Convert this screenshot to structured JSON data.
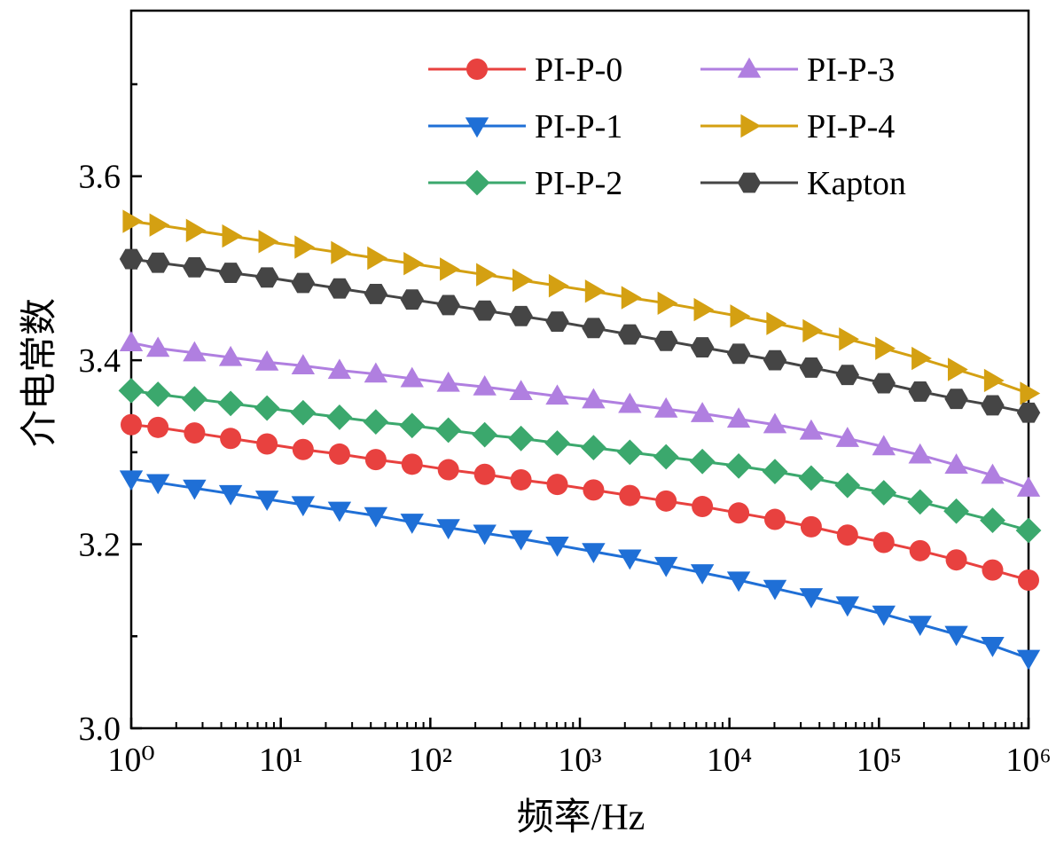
{
  "chart_data": {
    "type": "line",
    "x_label": "频率/Hz",
    "y_label": "介电常数",
    "x_scale": "log",
    "xlim": [
      1,
      1000000
    ],
    "ylim": [
      3.0,
      3.78
    ],
    "xticks": [
      {
        "value": 1,
        "label": "10⁰"
      },
      {
        "value": 10,
        "label": "10¹"
      },
      {
        "value": 100,
        "label": "10²"
      },
      {
        "value": 1000,
        "label": "10³"
      },
      {
        "value": 10000,
        "label": "10⁴"
      },
      {
        "value": 100000,
        "label": "10⁵"
      },
      {
        "value": 1000000,
        "label": "10⁶"
      }
    ],
    "yticks": [
      {
        "value": 3.0,
        "label": "3.0"
      },
      3.2,
      3.4,
      3.6
    ],
    "yminorticks": [
      3.1,
      3.3,
      3.5,
      3.7
    ],
    "legend": "top-right",
    "x": [
      1,
      1.51,
      2.65,
      4.62,
      8.09,
      14.1,
      24.7,
      43.2,
      75.5,
      132,
      231,
      404,
      706,
      1234,
      2158,
      3770,
      6590,
      11530,
      20150,
      35230,
      61570,
      107700,
      188300,
      329000,
      575000,
      1000000
    ],
    "series": [
      {
        "name": "PI-P-0",
        "color": "#e8413f",
        "marker": "circle",
        "values": [
          3.33,
          3.327,
          3.321,
          3.315,
          3.309,
          3.303,
          3.298,
          3.292,
          3.287,
          3.281,
          3.276,
          3.27,
          3.265,
          3.259,
          3.253,
          3.247,
          3.241,
          3.234,
          3.227,
          3.219,
          3.21,
          3.202,
          3.193,
          3.183,
          3.172,
          3.161
        ]
      },
      {
        "name": "PI-P-1",
        "color": "#1f6fd6",
        "marker": "triangle-down",
        "values": [
          3.271,
          3.267,
          3.261,
          3.255,
          3.249,
          3.243,
          3.237,
          3.231,
          3.224,
          3.218,
          3.212,
          3.206,
          3.199,
          3.192,
          3.185,
          3.177,
          3.169,
          3.161,
          3.152,
          3.143,
          3.134,
          3.124,
          3.113,
          3.102,
          3.09,
          3.076
        ]
      },
      {
        "name": "PI-P-2",
        "color": "#3ba86d",
        "marker": "diamond",
        "values": [
          3.367,
          3.363,
          3.358,
          3.353,
          3.348,
          3.343,
          3.338,
          3.333,
          3.329,
          3.324,
          3.319,
          3.315,
          3.31,
          3.305,
          3.3,
          3.295,
          3.29,
          3.285,
          3.279,
          3.272,
          3.264,
          3.256,
          3.246,
          3.236,
          3.226,
          3.215
        ]
      },
      {
        "name": "PI-P-3",
        "color": "#b07fe0",
        "marker": "triangle-up",
        "values": [
          3.419,
          3.413,
          3.408,
          3.403,
          3.398,
          3.394,
          3.389,
          3.385,
          3.38,
          3.375,
          3.371,
          3.366,
          3.361,
          3.357,
          3.352,
          3.347,
          3.342,
          3.336,
          3.33,
          3.323,
          3.315,
          3.306,
          3.297,
          3.286,
          3.275,
          3.261
        ]
      },
      {
        "name": "PI-P-4",
        "color": "#d4a012",
        "marker": "triangle-right",
        "values": [
          3.551,
          3.547,
          3.541,
          3.535,
          3.529,
          3.523,
          3.517,
          3.511,
          3.505,
          3.499,
          3.493,
          3.487,
          3.481,
          3.475,
          3.468,
          3.462,
          3.455,
          3.448,
          3.44,
          3.432,
          3.423,
          3.413,
          3.402,
          3.39,
          3.378,
          3.364
        ]
      },
      {
        "name": "Kapton",
        "color": "#454545",
        "marker": "hexagon",
        "values": [
          3.51,
          3.506,
          3.501,
          3.495,
          3.49,
          3.484,
          3.478,
          3.472,
          3.466,
          3.46,
          3.454,
          3.448,
          3.442,
          3.435,
          3.428,
          3.421,
          3.414,
          3.407,
          3.4,
          3.392,
          3.384,
          3.375,
          3.366,
          3.358,
          3.351,
          3.343
        ]
      }
    ]
  }
}
